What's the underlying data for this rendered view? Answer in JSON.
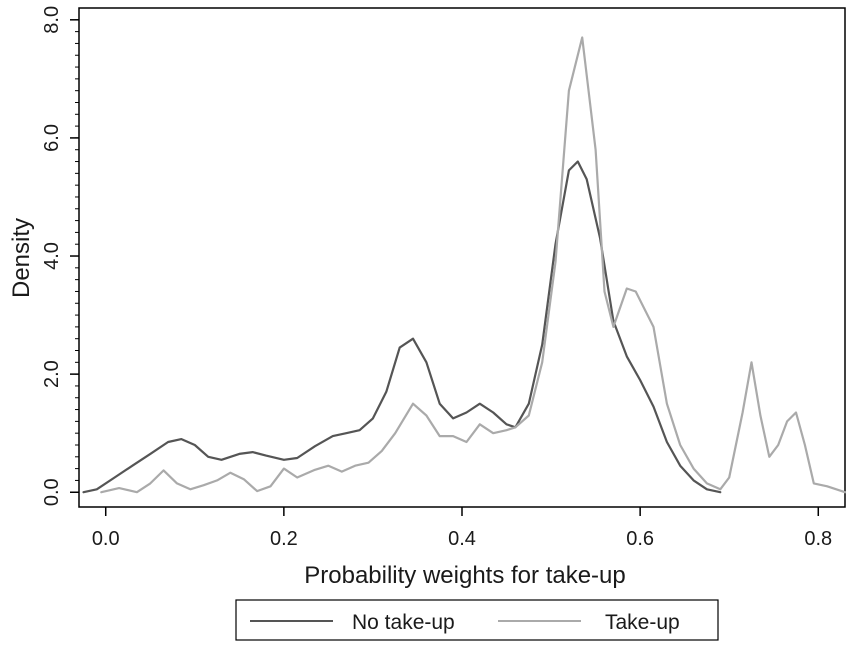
{
  "chart_data": {
    "type": "line",
    "xlabel": "Probability weights for take-up",
    "ylabel": "Density",
    "xlim": [
      -0.03,
      0.83
    ],
    "ylim": [
      -0.25,
      8.2
    ],
    "x_ticks": [
      {
        "value": 0.0,
        "label": "0.0"
      },
      {
        "value": 0.2,
        "label": "0.2"
      },
      {
        "value": 0.4,
        "label": "0.4"
      },
      {
        "value": 0.6,
        "label": "0.6"
      },
      {
        "value": 0.8,
        "label": "0.8"
      }
    ],
    "y_ticks": [
      {
        "value": 0.0,
        "label": "0.0"
      },
      {
        "value": 2.0,
        "label": "2.0"
      },
      {
        "value": 4.0,
        "label": "4.0"
      },
      {
        "value": 6.0,
        "label": "6.0"
      },
      {
        "value": 8.0,
        "label": "8.0"
      }
    ],
    "y_minor_step": 0.2,
    "grid": false,
    "legend_position": "bottom",
    "series": [
      {
        "name": "No take-up",
        "color": "#555555",
        "points": [
          [
            -0.025,
            0.0
          ],
          [
            -0.01,
            0.05
          ],
          [
            0.01,
            0.25
          ],
          [
            0.03,
            0.45
          ],
          [
            0.05,
            0.65
          ],
          [
            0.07,
            0.85
          ],
          [
            0.085,
            0.9
          ],
          [
            0.1,
            0.8
          ],
          [
            0.115,
            0.6
          ],
          [
            0.13,
            0.55
          ],
          [
            0.15,
            0.65
          ],
          [
            0.165,
            0.68
          ],
          [
            0.18,
            0.62
          ],
          [
            0.2,
            0.55
          ],
          [
            0.215,
            0.58
          ],
          [
            0.235,
            0.78
          ],
          [
            0.255,
            0.95
          ],
          [
            0.27,
            1.0
          ],
          [
            0.285,
            1.05
          ],
          [
            0.3,
            1.25
          ],
          [
            0.315,
            1.7
          ],
          [
            0.33,
            2.45
          ],
          [
            0.345,
            2.6
          ],
          [
            0.36,
            2.2
          ],
          [
            0.375,
            1.5
          ],
          [
            0.39,
            1.25
          ],
          [
            0.405,
            1.35
          ],
          [
            0.42,
            1.5
          ],
          [
            0.435,
            1.35
          ],
          [
            0.45,
            1.15
          ],
          [
            0.46,
            1.1
          ],
          [
            0.475,
            1.5
          ],
          [
            0.49,
            2.5
          ],
          [
            0.505,
            4.2
          ],
          [
            0.52,
            5.45
          ],
          [
            0.53,
            5.6
          ],
          [
            0.54,
            5.3
          ],
          [
            0.555,
            4.3
          ],
          [
            0.57,
            2.9
          ],
          [
            0.585,
            2.3
          ],
          [
            0.6,
            1.9
          ],
          [
            0.615,
            1.45
          ],
          [
            0.63,
            0.85
          ],
          [
            0.645,
            0.45
          ],
          [
            0.66,
            0.2
          ],
          [
            0.675,
            0.05
          ],
          [
            0.69,
            0.0
          ]
        ]
      },
      {
        "name": "Take-up",
        "color": "#aaaaaa",
        "points": [
          [
            -0.005,
            0.0
          ],
          [
            0.015,
            0.07
          ],
          [
            0.035,
            0.0
          ],
          [
            0.05,
            0.15
          ],
          [
            0.065,
            0.37
          ],
          [
            0.08,
            0.15
          ],
          [
            0.095,
            0.05
          ],
          [
            0.11,
            0.12
          ],
          [
            0.125,
            0.2
          ],
          [
            0.14,
            0.33
          ],
          [
            0.155,
            0.22
          ],
          [
            0.17,
            0.02
          ],
          [
            0.185,
            0.1
          ],
          [
            0.2,
            0.4
          ],
          [
            0.215,
            0.25
          ],
          [
            0.235,
            0.38
          ],
          [
            0.25,
            0.45
          ],
          [
            0.265,
            0.35
          ],
          [
            0.28,
            0.45
          ],
          [
            0.295,
            0.5
          ],
          [
            0.31,
            0.7
          ],
          [
            0.325,
            1.0
          ],
          [
            0.345,
            1.5
          ],
          [
            0.36,
            1.3
          ],
          [
            0.375,
            0.95
          ],
          [
            0.39,
            0.95
          ],
          [
            0.405,
            0.85
          ],
          [
            0.42,
            1.15
          ],
          [
            0.435,
            1.0
          ],
          [
            0.45,
            1.05
          ],
          [
            0.46,
            1.1
          ],
          [
            0.475,
            1.3
          ],
          [
            0.49,
            2.2
          ],
          [
            0.505,
            3.9
          ],
          [
            0.52,
            6.8
          ],
          [
            0.535,
            7.7
          ],
          [
            0.55,
            5.8
          ],
          [
            0.56,
            3.4
          ],
          [
            0.57,
            2.8
          ],
          [
            0.585,
            3.45
          ],
          [
            0.595,
            3.4
          ],
          [
            0.605,
            3.1
          ],
          [
            0.615,
            2.8
          ],
          [
            0.63,
            1.5
          ],
          [
            0.645,
            0.8
          ],
          [
            0.66,
            0.4
          ],
          [
            0.675,
            0.15
          ],
          [
            0.69,
            0.05
          ],
          [
            0.7,
            0.25
          ],
          [
            0.715,
            1.35
          ],
          [
            0.725,
            2.2
          ],
          [
            0.735,
            1.3
          ],
          [
            0.745,
            0.6
          ],
          [
            0.755,
            0.8
          ],
          [
            0.765,
            1.2
          ],
          [
            0.775,
            1.35
          ],
          [
            0.785,
            0.8
          ],
          [
            0.795,
            0.15
          ],
          [
            0.81,
            0.1
          ],
          [
            0.83,
            0.0
          ]
        ]
      }
    ]
  }
}
